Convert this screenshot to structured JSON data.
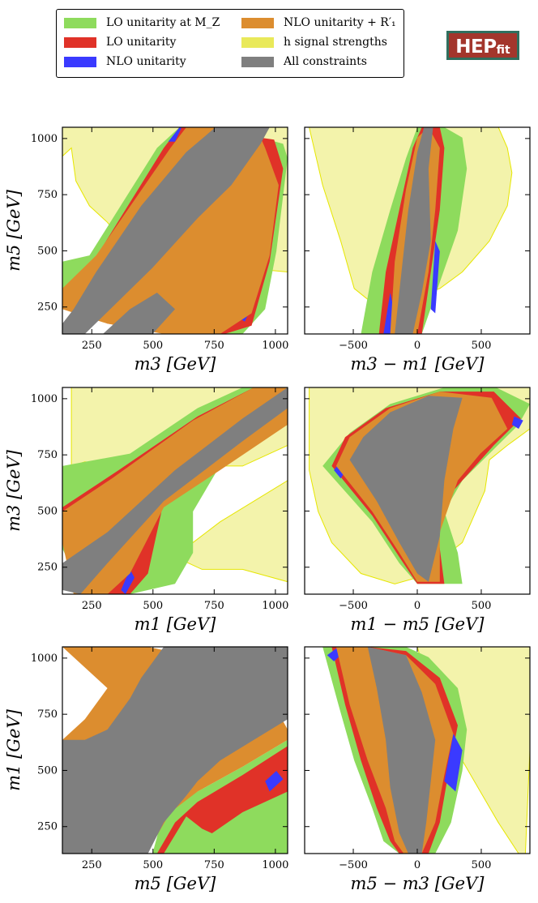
{
  "legend": {
    "items": [
      {
        "label": "LO unitarity at M_Z",
        "color": "#8edb5d"
      },
      {
        "label": "LO unitarity",
        "color": "#e03228"
      },
      {
        "label": "NLO unitarity",
        "color": "#3a3aff"
      },
      {
        "label": "NLO unitarity + R′₁",
        "color": "#dc8d2f"
      },
      {
        "label": "h signal strengths",
        "color": "#e9e95a"
      },
      {
        "label": "All constraints",
        "color": "#7f7f7f"
      }
    ]
  },
  "logo": {
    "main": "HEP",
    "sub": "fit"
  },
  "colors": {
    "lo_mz": "#8edb5d",
    "lo": "#e03228",
    "nlo": "#3a3aff",
    "nlo_r1": "#dc8d2f",
    "signal": "#f3f3ab",
    "signal_edge": "#e6e600",
    "all": "#7f7f7f"
  },
  "chart_data": [
    {
      "type": "contour",
      "xlabel": "m3 [GeV]",
      "ylabel": "m5 [GeV]",
      "xlim": [
        130,
        1050
      ],
      "ylim": [
        130,
        1050
      ],
      "xticks": [
        250,
        500,
        750,
        1000
      ],
      "yticks": [
        250,
        500,
        750,
        1000
      ],
      "xtick_labels": [
        "250",
        "500",
        "750",
        "1000"
      ],
      "ytick_labels": [
        "250",
        "500",
        "750",
        "1000"
      ]
    },
    {
      "type": "contour",
      "xlabel": "m3 − m1 [GeV]",
      "ylabel": "",
      "xlim": [
        -880,
        880
      ],
      "ylim": [
        130,
        1050
      ],
      "xticks": [
        -500,
        0,
        500
      ],
      "yticks": [
        250,
        500,
        750,
        1000
      ],
      "xtick_labels": [
        "−500",
        "0",
        "500"
      ],
      "ytick_labels": []
    },
    {
      "type": "contour",
      "xlabel": "m1 [GeV]",
      "ylabel": "m3 [GeV]",
      "xlim": [
        130,
        1050
      ],
      "ylim": [
        130,
        1050
      ],
      "xticks": [
        250,
        500,
        750,
        1000
      ],
      "yticks": [
        250,
        500,
        750,
        1000
      ],
      "xtick_labels": [
        "250",
        "500",
        "750",
        "1000"
      ],
      "ytick_labels": [
        "250",
        "500",
        "750",
        "1000"
      ]
    },
    {
      "type": "contour",
      "xlabel": "m1 − m5 [GeV]",
      "ylabel": "",
      "xlim": [
        -880,
        880
      ],
      "ylim": [
        130,
        1050
      ],
      "xticks": [
        -500,
        0,
        500
      ],
      "yticks": [
        250,
        500,
        750,
        1000
      ],
      "xtick_labels": [
        "−500",
        "0",
        "500"
      ],
      "ytick_labels": []
    },
    {
      "type": "contour",
      "xlabel": "m5 [GeV]",
      "ylabel": "m1 [GeV]",
      "xlim": [
        130,
        1050
      ],
      "ylim": [
        130,
        1050
      ],
      "xticks": [
        250,
        500,
        750,
        1000
      ],
      "yticks": [
        250,
        500,
        750,
        1000
      ],
      "xtick_labels": [
        "250",
        "500",
        "750",
        "1000"
      ],
      "ytick_labels": [
        "250",
        "500",
        "750",
        "1000"
      ]
    },
    {
      "type": "contour",
      "xlabel": "m5 − m3 [GeV]",
      "ylabel": "",
      "xlim": [
        -880,
        880
      ],
      "ylim": [
        130,
        1050
      ],
      "xticks": [
        -500,
        0,
        500
      ],
      "yticks": [
        250,
        500,
        750,
        1000
      ],
      "xtick_labels": [
        "−500",
        "0",
        "500"
      ],
      "ytick_labels": []
    }
  ]
}
